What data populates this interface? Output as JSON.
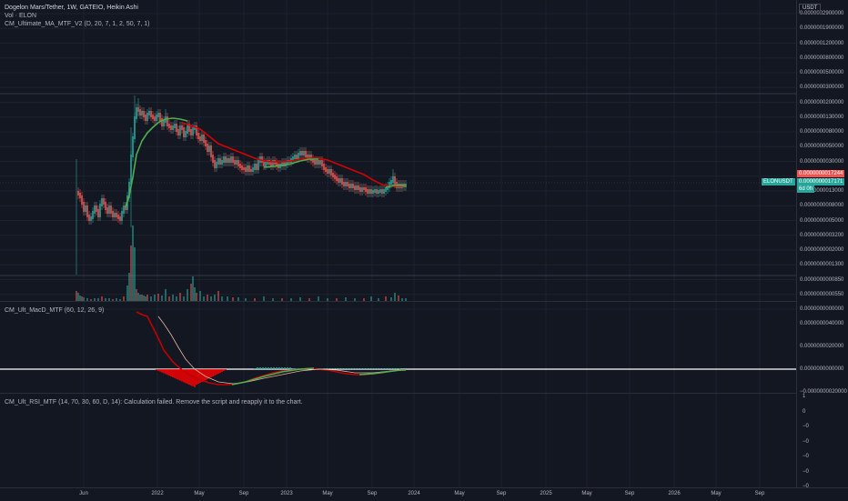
{
  "legend": {
    "symbol": "Dogelon Mars/Tether, 1W, GATEIO, Heikin Ashi",
    "volume": "Vol · ELON",
    "ma_indicator": "CM_Ultimate_MA_MTF_V2 (D, 20, 7, 1, 2, 50, 7, 1)",
    "macd_indicator": "CM_Ult_MacD_MTF (60, 12, 26, 9)",
    "rsi_indicator": "CM_Ult_RSI_MTF (14, 70, 30, 60, D, 14): Calculation failed. Remove the script and reapply it to the chart."
  },
  "price_scale": {
    "currency": "USDT",
    "ticks": [
      "0.0000002900000",
      "0.0000001900000",
      "0.0000001200000",
      "0.0000000800000",
      "0.0000000500000",
      "0.0000000300000",
      "0.0000000200000",
      "0.0000000130000",
      "0.0000000080000",
      "0.0000000050000",
      "0.0000000030000",
      "0.0000000020000",
      "0.0000000013000",
      "0.0000000008000",
      "0.0000000005000",
      "0.0000000003200",
      "0.0000000002000",
      "0.0000000001300",
      "0.0000000000850",
      "0.0000000000550",
      "0.0000000000000"
    ],
    "current_price": "0.0000000017244",
    "ma_price": "0.0000000017171",
    "countdown": "6d 0h",
    "symbol_badge": "ELONUSDT"
  },
  "macd_scale": {
    "ticks": [
      "0.0000000040000",
      "0.0000000020000",
      "0.0000000000000",
      "−0.0000000020000"
    ]
  },
  "rsi_scale": {
    "ticks": [
      "1",
      "0",
      "−0",
      "−0",
      "−0",
      "−0",
      "−0"
    ]
  },
  "time_scale": {
    "ticks": [
      "Jun",
      "2022",
      "May",
      "Sep",
      "2023",
      "May",
      "Sep",
      "2024",
      "May",
      "Sep",
      "2025",
      "May",
      "Sep",
      "2026",
      "May",
      "Sep"
    ]
  },
  "colors": {
    "up": "#26a69a",
    "down": "#ef5350",
    "ma_green": "#4caf50",
    "ma_red": "#d50000",
    "bg": "#131722"
  }
}
